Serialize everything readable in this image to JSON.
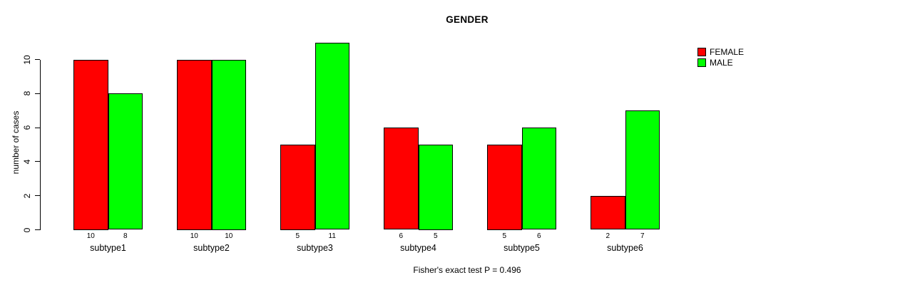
{
  "chart_data": {
    "type": "bar",
    "title": "GENDER",
    "ylabel": "number of cases",
    "xlabel": "",
    "note": "Fisher's exact test P = 0.496",
    "categories": [
      "subtype1",
      "subtype2",
      "subtype3",
      "subtype4",
      "subtype5",
      "subtype6"
    ],
    "series": [
      {
        "name": "FEMALE",
        "color": "#FF0000",
        "values": [
          10,
          10,
          5,
          6,
          5,
          2
        ]
      },
      {
        "name": "MALE",
        "color": "#00FF00",
        "values": [
          8,
          10,
          11,
          5,
          6,
          7
        ]
      }
    ],
    "yticks": [
      0,
      2,
      4,
      6,
      8,
      10
    ],
    "ylim": [
      0,
      11
    ],
    "grid": false,
    "bar_value_labels": true,
    "legend_position": "top-right",
    "colors": {
      "background": "#FFFFFF",
      "axis": "#000000",
      "text": "#000000"
    }
  }
}
